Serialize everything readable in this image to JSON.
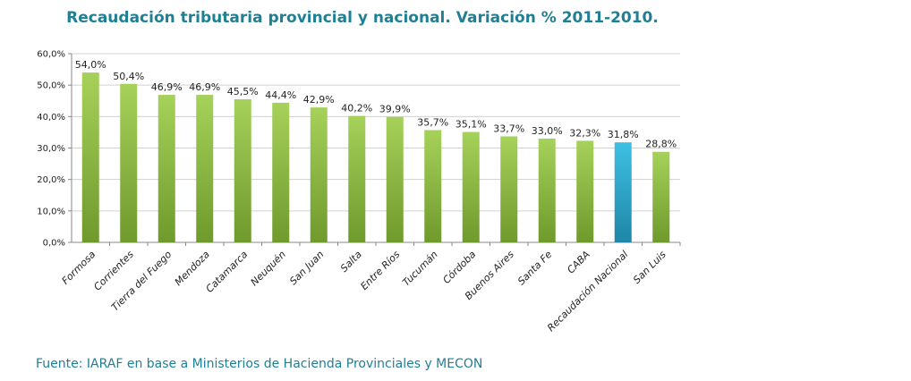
{
  "chart_data": {
    "type": "bar",
    "title": "Recaudación tributaria provincial y nacional. Variación % 2011-2010.",
    "source": "Fuente: IARAF en base a Ministerios de Hacienda Provinciales y MECON",
    "categories": [
      "Formosa",
      "Corrientes",
      "Tierra del Fuego",
      "Mendoza",
      "Catamarca",
      "Neuquén",
      "San Juan",
      "Salta",
      "Entre Ríos",
      "Tucumán",
      "Córdoba",
      "Buenos Aires",
      "Santa Fe",
      "CABA",
      "Recaudación Nacional",
      "San Luis"
    ],
    "values": [
      54.0,
      50.4,
      46.9,
      46.9,
      45.5,
      44.4,
      42.9,
      40.2,
      39.9,
      35.7,
      35.1,
      33.7,
      33.0,
      32.3,
      31.8,
      28.8
    ],
    "value_labels": [
      "54,0%",
      "50,4%",
      "46,9%",
      "46,9%",
      "45,5%",
      "44,4%",
      "42,9%",
      "40,2%",
      "39,9%",
      "35,7%",
      "35,1%",
      "33,7%",
      "33,0%",
      "32,3%",
      "31,8%",
      "28,8%"
    ],
    "yticks": [
      0,
      10,
      20,
      30,
      40,
      50,
      60
    ],
    "ytick_labels": [
      "0,0%",
      "10,0%",
      "20,0%",
      "30,0%",
      "40,0%",
      "50,0%",
      "60,0%"
    ],
    "ylim": [
      0,
      60
    ],
    "xlabel": "",
    "ylabel": "",
    "grid": true,
    "colors": {
      "default": "#8cbf3f",
      "highlight": "#2ea7c8",
      "highlight_index": 14
    }
  }
}
